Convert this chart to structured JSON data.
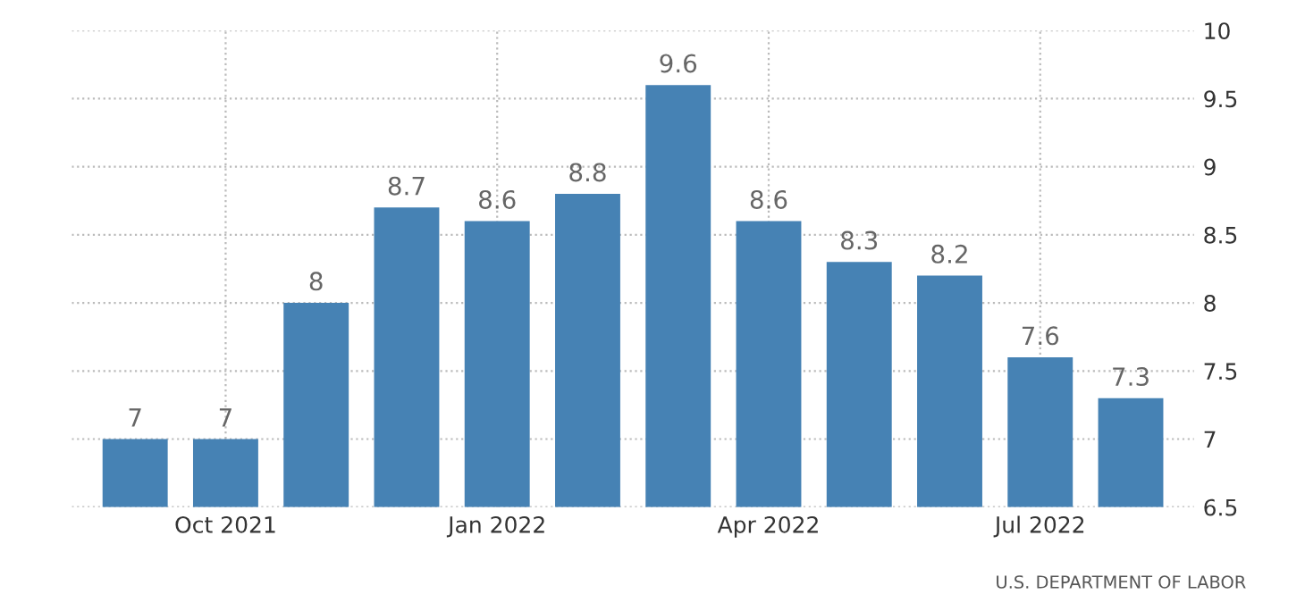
{
  "chart_data": {
    "type": "bar",
    "categories": [
      null,
      "Oct 2021",
      null,
      null,
      "Jan 2022",
      null,
      null,
      "Apr 2022",
      null,
      null,
      "Jul 2022",
      null
    ],
    "values": [
      7,
      7,
      8,
      8.7,
      8.6,
      8.8,
      9.6,
      8.6,
      8.3,
      8.2,
      7.6,
      7.3
    ],
    "color": "#4682b4",
    "ylim": [
      6.5,
      10
    ],
    "yticks": [
      6.5,
      7,
      7.5,
      8,
      8.5,
      9,
      9.5,
      10
    ],
    "grid": true,
    "data_labels": true,
    "annotations": [
      "U.S. DEPARTMENT OF LABOR"
    ]
  }
}
